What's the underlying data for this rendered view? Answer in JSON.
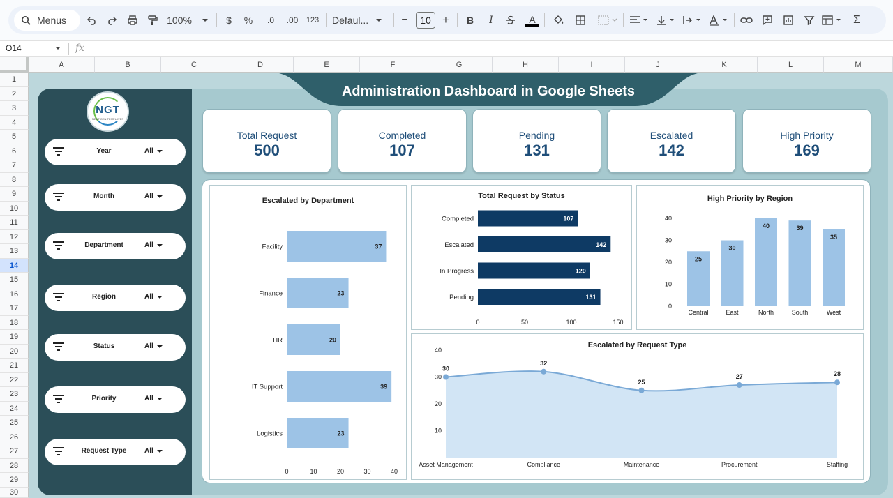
{
  "toolbar": {
    "menus_label": "Menus",
    "zoom": "100%",
    "currency": "$",
    "percent": "%",
    "dec_decrease": ".0",
    "dec_increase": ".00",
    "number_format": "123",
    "font_name": "Defaul...",
    "font_size": "10",
    "minus": "−",
    "plus": "+",
    "bold": "B",
    "italic": "I",
    "textcolor": "A",
    "sigma": "Σ"
  },
  "formula_bar": {
    "cell_ref": "O14",
    "fx": "fx"
  },
  "columns": [
    "A",
    "B",
    "C",
    "D",
    "E",
    "F",
    "G",
    "H",
    "I",
    "J",
    "K",
    "L",
    "M"
  ],
  "rows": [
    "1",
    "2",
    "3",
    "4",
    "5",
    "6",
    "7",
    "8",
    "9",
    "10",
    "11",
    "12",
    "13",
    "14",
    "15",
    "16",
    "17",
    "18",
    "19",
    "20",
    "21",
    "22",
    "23",
    "24",
    "25",
    "26",
    "27",
    "28",
    "29",
    "30"
  ],
  "active_row": "14",
  "dashboard": {
    "title": "Administration Dashboard in Google Sheets",
    "logo": {
      "text": "NGT",
      "sub": "NEXT GEN TEMPLATES"
    },
    "filters": [
      {
        "label": "Year",
        "value": "All"
      },
      {
        "label": "Month",
        "value": "All"
      },
      {
        "label": "Department",
        "value": "All"
      },
      {
        "label": "Region",
        "value": "All"
      },
      {
        "label": "Status",
        "value": "All"
      },
      {
        "label": "Priority",
        "value": "All"
      },
      {
        "label": "Request Type",
        "value": "All"
      }
    ],
    "kpis": [
      {
        "label": "Total Request",
        "value": "500"
      },
      {
        "label": "Completed",
        "value": "107"
      },
      {
        "label": "Pending",
        "value": "131"
      },
      {
        "label": "Escalated",
        "value": "142"
      },
      {
        "label": "High Priority",
        "value": "169"
      }
    ],
    "colors": {
      "sidebar": "#2b4e58",
      "light_bar": "#9dc3e6",
      "dark_bar": "#0e3a64",
      "area_fill": "#d2e5f5",
      "line": "#7aa9d6",
      "kpi_text": "#1f4e79"
    }
  },
  "chart_data": [
    {
      "type": "bar",
      "orientation": "horizontal",
      "title": "Escalated  by Department",
      "categories": [
        "Facility",
        "Finance",
        "HR",
        "IT Support",
        "Logistics"
      ],
      "values": [
        37,
        23,
        20,
        39,
        23
      ],
      "xlim": [
        0,
        40
      ],
      "ticks": [
        0,
        10,
        20,
        30,
        40
      ],
      "grid": false,
      "legend": "none"
    },
    {
      "type": "bar",
      "orientation": "horizontal",
      "title": "Total Request by Status",
      "categories": [
        "Completed",
        "Escalated",
        "In Progress",
        "Pending"
      ],
      "values": [
        107,
        142,
        120,
        131
      ],
      "xlim": [
        0,
        150
      ],
      "ticks": [
        0,
        50,
        100,
        150
      ],
      "grid": false,
      "legend": "none"
    },
    {
      "type": "bar",
      "orientation": "vertical",
      "title": "High Priority by Region",
      "categories": [
        "Central",
        "East",
        "North",
        "South",
        "West"
      ],
      "values": [
        25,
        30,
        40,
        39,
        35
      ],
      "ylim": [
        0,
        40
      ],
      "ticks": [
        0,
        10,
        20,
        30,
        40
      ],
      "grid": false,
      "legend": "none"
    },
    {
      "type": "area",
      "title": "Escalated  by Request Type",
      "categories": [
        "Asset Management",
        "Compliance",
        "Maintenance",
        "Procurement",
        "Staffing"
      ],
      "values": [
        30,
        32,
        25,
        27,
        28
      ],
      "ylim": [
        0,
        40
      ],
      "ticks": [
        10,
        20,
        30,
        40
      ],
      "grid": false,
      "legend": "none"
    }
  ]
}
